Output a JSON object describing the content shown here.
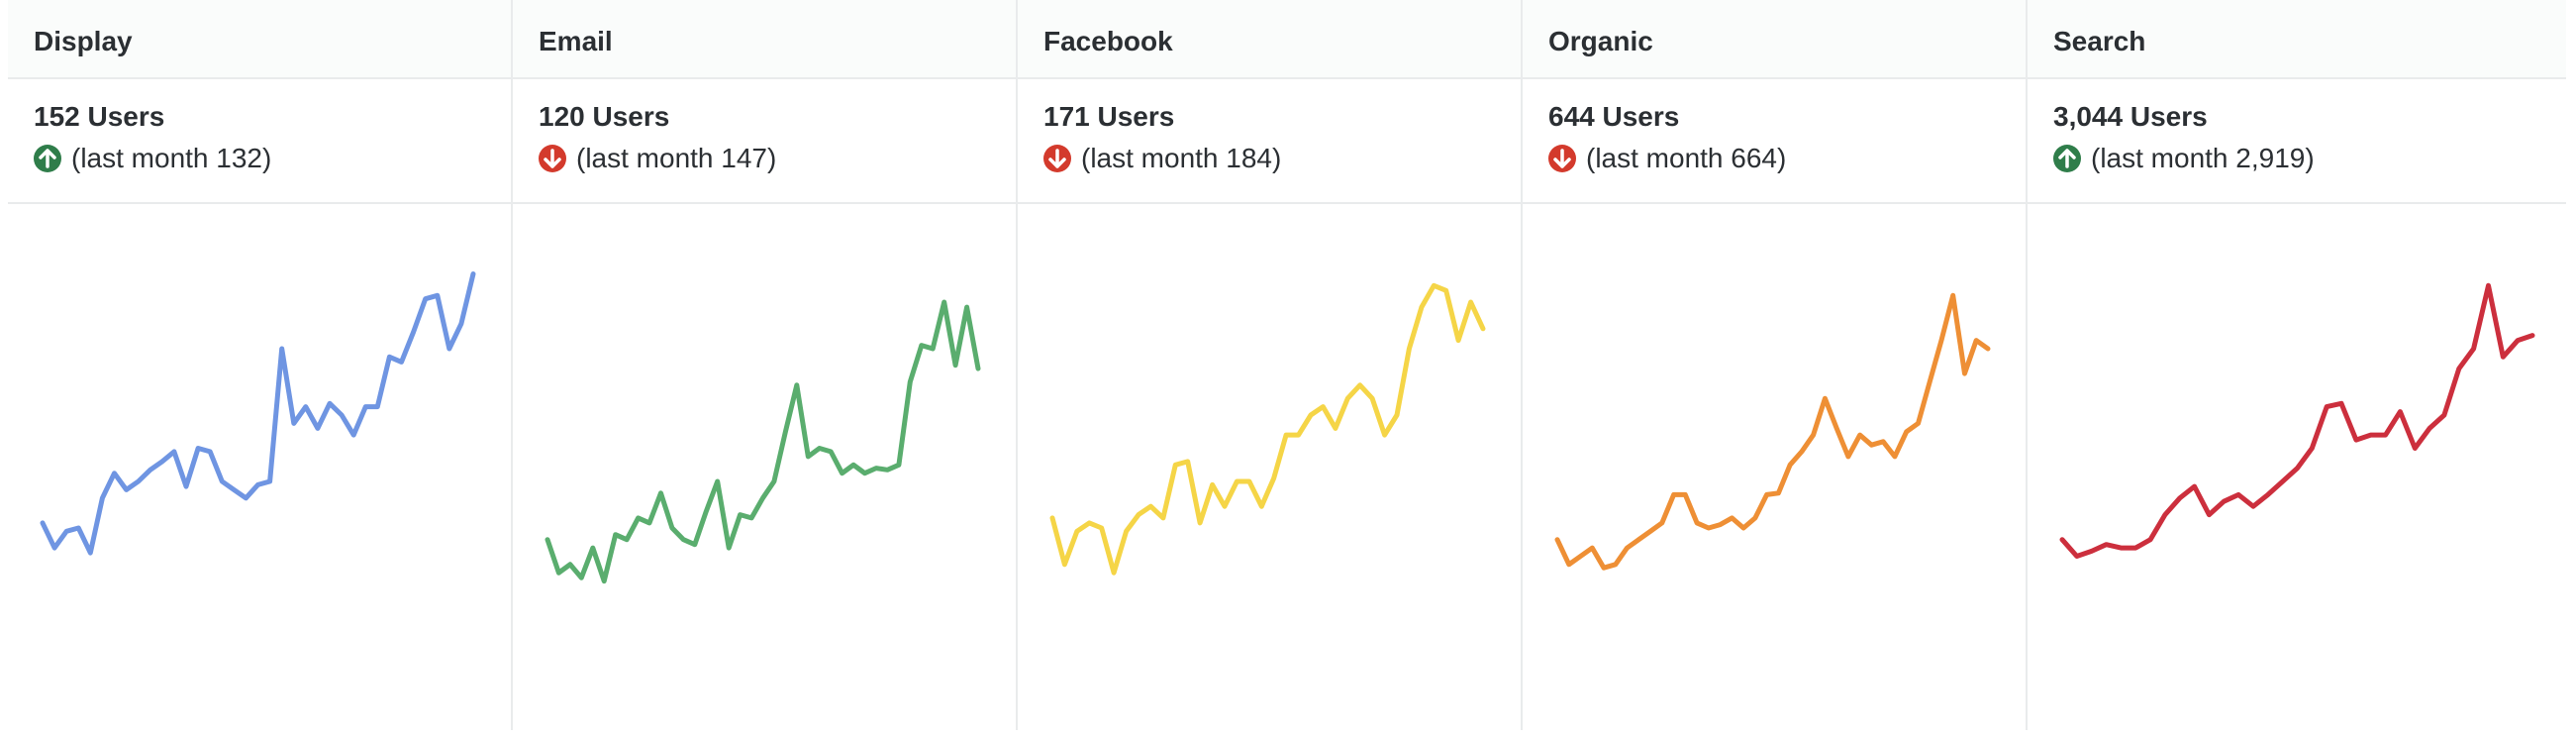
{
  "columns": [
    {
      "title": "Display",
      "users": "152 Users",
      "last_month": "(last month 132)",
      "trend": "up",
      "color": "#6f95e2",
      "values": [
        125,
        110,
        120,
        122,
        107,
        140,
        155,
        145,
        150,
        157,
        162,
        168,
        147,
        170,
        168,
        150,
        145,
        140,
        148,
        150,
        230,
        185,
        195,
        182,
        197,
        190,
        178,
        195,
        195,
        225,
        222,
        240,
        260,
        262,
        230,
        245,
        275
      ]
    },
    {
      "title": "Email",
      "users": "120 Users",
      "last_month": "(last month 147)",
      "trend": "down",
      "color": "#5aad6e",
      "values": [
        115,
        95,
        100,
        92,
        110,
        90,
        118,
        115,
        128,
        125,
        143,
        122,
        115,
        112,
        132,
        150,
        110,
        130,
        128,
        140,
        150,
        180,
        208,
        165,
        170,
        168,
        155,
        160,
        155,
        158,
        157,
        160,
        210,
        232,
        230,
        258,
        220,
        255,
        218
      ]
    },
    {
      "title": "Facebook",
      "users": "171 Users",
      "last_month": "(last month 184)",
      "trend": "down",
      "color": "#f5d547",
      "values": [
        128,
        100,
        120,
        125,
        122,
        95,
        120,
        130,
        135,
        128,
        160,
        162,
        125,
        148,
        135,
        150,
        150,
        135,
        152,
        178,
        178,
        190,
        195,
        182,
        200,
        208,
        200,
        178,
        190,
        230,
        255,
        268,
        265,
        235,
        258,
        242
      ]
    },
    {
      "title": "Organic",
      "users": "644 Users",
      "last_month": "(last month 664)",
      "trend": "down",
      "color": "#ee8f35",
      "values": [
        115,
        100,
        105,
        110,
        98,
        100,
        110,
        115,
        120,
        125,
        142,
        142,
        125,
        122,
        124,
        128,
        122,
        128,
        142,
        143,
        160,
        168,
        178,
        200,
        182,
        165,
        178,
        172,
        174,
        165,
        180,
        185,
        210,
        235,
        262,
        215,
        235,
        230
      ]
    },
    {
      "title": "Search",
      "users": "3,044 Users",
      "last_month": "(last month 2,919)",
      "trend": "up",
      "color": "#cc2f3d",
      "values": [
        115,
        105,
        108,
        112,
        110,
        110,
        115,
        130,
        140,
        147,
        130,
        138,
        142,
        135,
        142,
        150,
        158,
        170,
        195,
        197,
        175,
        178,
        178,
        192,
        170,
        182,
        190,
        218,
        230,
        268,
        225,
        235,
        238
      ]
    }
  ]
}
